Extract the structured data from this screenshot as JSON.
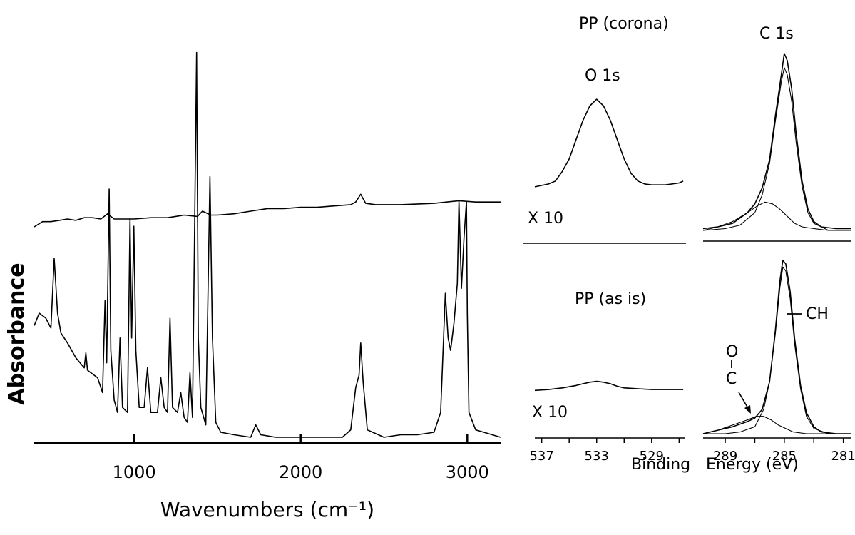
{
  "chart_data": [
    {
      "type": "line",
      "panel": "ftir",
      "xlabel": "Wavenumbers (cm⁻¹)",
      "ylabel": "Absorbance",
      "tick_labels": [
        "1000",
        "2000",
        "3000"
      ],
      "tick_values": [
        1000,
        2000,
        3000
      ],
      "xlim": [
        400,
        3200
      ],
      "series": [
        {
          "points": [
            [
              400,
              0.0
            ],
            [
              450,
              0.04
            ],
            [
              500,
              0.04
            ],
            [
              550,
              0.05
            ],
            [
              600,
              0.06
            ],
            [
              650,
              0.05
            ],
            [
              700,
              0.07
            ],
            [
              750,
              0.07
            ],
            [
              800,
              0.06
            ],
            [
              840,
              0.1
            ],
            [
              880,
              0.06
            ],
            [
              950,
              0.06
            ],
            [
              1000,
              0.06
            ],
            [
              1100,
              0.07
            ],
            [
              1200,
              0.07
            ],
            [
              1300,
              0.09
            ],
            [
              1380,
              0.08
            ],
            [
              1410,
              0.12
            ],
            [
              1460,
              0.09
            ],
            [
              1500,
              0.09
            ],
            [
              1600,
              0.1
            ],
            [
              1700,
              0.12
            ],
            [
              1800,
              0.14
            ],
            [
              1900,
              0.14
            ],
            [
              2000,
              0.15
            ],
            [
              2100,
              0.15
            ],
            [
              2200,
              0.16
            ],
            [
              2300,
              0.17
            ],
            [
              2330,
              0.19
            ],
            [
              2360,
              0.25
            ],
            [
              2390,
              0.18
            ],
            [
              2450,
              0.17
            ],
            [
              2600,
              0.17
            ],
            [
              2800,
              0.18
            ],
            [
              2950,
              0.2
            ],
            [
              3050,
              0.19
            ],
            [
              3200,
              0.19
            ]
          ]
        },
        {
          "points": [
            [
              400,
              0.45
            ],
            [
              430,
              0.5
            ],
            [
              470,
              0.48
            ],
            [
              500,
              0.44
            ],
            [
              520,
              0.72
            ],
            [
              540,
              0.5
            ],
            [
              560,
              0.42
            ],
            [
              600,
              0.38
            ],
            [
              650,
              0.32
            ],
            [
              700,
              0.28
            ],
            [
              710,
              0.34
            ],
            [
              720,
              0.27
            ],
            [
              780,
              0.24
            ],
            [
              810,
              0.18
            ],
            [
              825,
              0.55
            ],
            [
              835,
              0.3
            ],
            [
              850,
              1.0
            ],
            [
              860,
              0.35
            ],
            [
              880,
              0.15
            ],
            [
              900,
              0.1
            ],
            [
              915,
              0.4
            ],
            [
              930,
              0.12
            ],
            [
              960,
              0.1
            ],
            [
              975,
              0.88
            ],
            [
              985,
              0.4
            ],
            [
              998,
              0.85
            ],
            [
              1010,
              0.35
            ],
            [
              1030,
              0.12
            ],
            [
              1060,
              0.12
            ],
            [
              1080,
              0.28
            ],
            [
              1100,
              0.1
            ],
            [
              1140,
              0.1
            ],
            [
              1160,
              0.24
            ],
            [
              1180,
              0.12
            ],
            [
              1200,
              0.1
            ],
            [
              1215,
              0.48
            ],
            [
              1230,
              0.12
            ],
            [
              1260,
              0.1
            ],
            [
              1280,
              0.18
            ],
            [
              1300,
              0.08
            ],
            [
              1320,
              0.06
            ],
            [
              1335,
              0.26
            ],
            [
              1350,
              0.08
            ],
            [
              1375,
              1.55
            ],
            [
              1385,
              0.4
            ],
            [
              1400,
              0.12
            ],
            [
              1430,
              0.05
            ],
            [
              1455,
              1.05
            ],
            [
              1470,
              0.4
            ],
            [
              1490,
              0.06
            ],
            [
              1520,
              0.02
            ],
            [
              1600,
              0.01
            ],
            [
              1700,
              0.0
            ],
            [
              1730,
              0.05
            ],
            [
              1760,
              0.01
            ],
            [
              1850,
              0.0
            ],
            [
              2000,
              0.0
            ],
            [
              2100,
              0.0
            ],
            [
              2250,
              0.0
            ],
            [
              2300,
              0.03
            ],
            [
              2330,
              0.2
            ],
            [
              2350,
              0.25
            ],
            [
              2360,
              0.38
            ],
            [
              2375,
              0.22
            ],
            [
              2400,
              0.03
            ],
            [
              2500,
              0.0
            ],
            [
              2600,
              0.01
            ],
            [
              2700,
              0.01
            ],
            [
              2800,
              0.02
            ],
            [
              2840,
              0.1
            ],
            [
              2868,
              0.58
            ],
            [
              2885,
              0.4
            ],
            [
              2900,
              0.35
            ],
            [
              2920,
              0.46
            ],
            [
              2940,
              0.62
            ],
            [
              2950,
              0.95
            ],
            [
              2965,
              0.6
            ],
            [
              2980,
              0.8
            ],
            [
              2995,
              0.95
            ],
            [
              3000,
              0.5
            ],
            [
              3010,
              0.1
            ],
            [
              3050,
              0.03
            ],
            [
              3100,
              0.02
            ],
            [
              3200,
              0.0
            ]
          ]
        }
      ]
    },
    {
      "type": "line",
      "panel": "xps-O1s-corona",
      "title": "PP (corona)",
      "annotation": "O 1s",
      "scale_label": "X 10",
      "xlim": [
        537.5,
        526.5
      ],
      "series": [
        {
          "points": [
            [
              537.5,
              0.06
            ],
            [
              536.5,
              0.09
            ],
            [
              536.0,
              0.12
            ],
            [
              535.5,
              0.22
            ],
            [
              535.0,
              0.35
            ],
            [
              534.5,
              0.55
            ],
            [
              534.0,
              0.75
            ],
            [
              533.5,
              0.9
            ],
            [
              533.0,
              0.97
            ],
            [
              532.5,
              0.9
            ],
            [
              532.0,
              0.75
            ],
            [
              531.5,
              0.55
            ],
            [
              531.0,
              0.35
            ],
            [
              530.5,
              0.2
            ],
            [
              530.0,
              0.12
            ],
            [
              529.5,
              0.09
            ],
            [
              529.0,
              0.08
            ],
            [
              528.0,
              0.08
            ],
            [
              527.0,
              0.1
            ],
            [
              526.7,
              0.12
            ]
          ]
        }
      ]
    },
    {
      "type": "line",
      "panel": "xps-C1s-corona",
      "title": "C 1s",
      "xlim": [
        290.5,
        280.5
      ],
      "series": [
        {
          "points": [
            [
              290.5,
              0.01
            ],
            [
              289.5,
              0.02
            ],
            [
              288.5,
              0.04
            ],
            [
              287.5,
              0.1
            ],
            [
              287.0,
              0.15
            ],
            [
              286.5,
              0.24
            ],
            [
              286.0,
              0.4
            ],
            [
              285.6,
              0.65
            ],
            [
              285.2,
              0.88
            ],
            [
              285.0,
              1.0
            ],
            [
              284.8,
              0.96
            ],
            [
              284.5,
              0.8
            ],
            [
              284.2,
              0.55
            ],
            [
              283.8,
              0.28
            ],
            [
              283.4,
              0.12
            ],
            [
              283.0,
              0.05
            ],
            [
              282.5,
              0.02
            ],
            [
              281.5,
              0.01
            ],
            [
              280.5,
              0.01
            ]
          ]
        },
        {
          "points": [
            [
              290.5,
              0.0
            ],
            [
              289.0,
              0.01
            ],
            [
              288.0,
              0.03
            ],
            [
              287.0,
              0.1
            ],
            [
              286.5,
              0.2
            ],
            [
              286.0,
              0.38
            ],
            [
              285.6,
              0.62
            ],
            [
              285.2,
              0.84
            ],
            [
              285.0,
              0.92
            ],
            [
              284.8,
              0.88
            ],
            [
              284.5,
              0.73
            ],
            [
              284.2,
              0.5
            ],
            [
              283.8,
              0.25
            ],
            [
              283.4,
              0.1
            ],
            [
              283.0,
              0.04
            ],
            [
              282.0,
              0.0
            ],
            [
              280.5,
              0.0
            ]
          ]
        },
        {
          "points": [
            [
              290.5,
              0.0
            ],
            [
              289.5,
              0.02
            ],
            [
              288.5,
              0.05
            ],
            [
              287.5,
              0.1
            ],
            [
              286.8,
              0.14
            ],
            [
              286.3,
              0.16
            ],
            [
              285.8,
              0.15
            ],
            [
              285.3,
              0.12
            ],
            [
              284.8,
              0.08
            ],
            [
              284.3,
              0.04
            ],
            [
              283.8,
              0.02
            ],
            [
              283.0,
              0.01
            ],
            [
              282.0,
              0.0
            ],
            [
              280.5,
              0.0
            ]
          ]
        }
      ]
    },
    {
      "type": "line",
      "panel": "xps-O1s-asis",
      "title": "PP (as is)",
      "scale_label": "X 10",
      "xlim": [
        537.5,
        526.5
      ],
      "tick_labels": [
        "537",
        "533",
        "529"
      ],
      "tick_values": [
        537,
        533,
        529
      ],
      "series": [
        {
          "points": [
            [
              537.5,
              0.05
            ],
            [
              536.5,
              0.06
            ],
            [
              535.5,
              0.08
            ],
            [
              534.5,
              0.11
            ],
            [
              534.0,
              0.13
            ],
            [
              533.5,
              0.15
            ],
            [
              533.0,
              0.16
            ],
            [
              532.5,
              0.15
            ],
            [
              532.0,
              0.13
            ],
            [
              531.5,
              0.1
            ],
            [
              531.0,
              0.08
            ],
            [
              530.0,
              0.07
            ],
            [
              529.0,
              0.06
            ],
            [
              528.0,
              0.06
            ],
            [
              527.0,
              0.06
            ],
            [
              526.7,
              0.06
            ]
          ]
        }
      ]
    },
    {
      "type": "line",
      "panel": "xps-C1s-asis",
      "annotation_ch": "CH",
      "annotation_oc_top": "O",
      "annotation_oc_bottom": "C",
      "xlim": [
        290.5,
        280.5
      ],
      "tick_labels": [
        "289",
        "285",
        "281"
      ],
      "tick_values": [
        289,
        285,
        281
      ],
      "xlabel_left": "Binding",
      "xlabel_right": "Energy  (eV)",
      "series": [
        {
          "points": [
            [
              290.5,
              0.0
            ],
            [
              289.5,
              0.02
            ],
            [
              288.5,
              0.04
            ],
            [
              287.5,
              0.07
            ],
            [
              287.0,
              0.09
            ],
            [
              286.5,
              0.14
            ],
            [
              286.0,
              0.3
            ],
            [
              285.6,
              0.6
            ],
            [
              285.3,
              0.88
            ],
            [
              285.1,
              1.0
            ],
            [
              284.9,
              0.98
            ],
            [
              284.6,
              0.82
            ],
            [
              284.3,
              0.55
            ],
            [
              283.9,
              0.28
            ],
            [
              283.5,
              0.12
            ],
            [
              283.0,
              0.04
            ],
            [
              282.5,
              0.01
            ],
            [
              281.5,
              0.0
            ],
            [
              280.5,
              0.0
            ]
          ]
        },
        {
          "points": [
            [
              290.5,
              0.0
            ],
            [
              289.0,
              0.0
            ],
            [
              288.0,
              0.01
            ],
            [
              287.0,
              0.04
            ],
            [
              286.4,
              0.14
            ],
            [
              286.0,
              0.3
            ],
            [
              285.6,
              0.58
            ],
            [
              285.3,
              0.84
            ],
            [
              285.1,
              0.96
            ],
            [
              284.9,
              0.94
            ],
            [
              284.6,
              0.78
            ],
            [
              284.3,
              0.52
            ],
            [
              283.9,
              0.26
            ],
            [
              283.5,
              0.1
            ],
            [
              283.0,
              0.03
            ],
            [
              282.0,
              0.0
            ],
            [
              280.5,
              0.0
            ]
          ]
        },
        {
          "points": [
            [
              290.5,
              0.0
            ],
            [
              289.5,
              0.02
            ],
            [
              288.5,
              0.05
            ],
            [
              287.5,
              0.08
            ],
            [
              286.9,
              0.1
            ],
            [
              286.4,
              0.1
            ],
            [
              285.9,
              0.08
            ],
            [
              285.4,
              0.05
            ],
            [
              284.9,
              0.03
            ],
            [
              284.4,
              0.01
            ],
            [
              283.5,
              0.0
            ],
            [
              280.5,
              0.0
            ]
          ]
        }
      ]
    }
  ]
}
